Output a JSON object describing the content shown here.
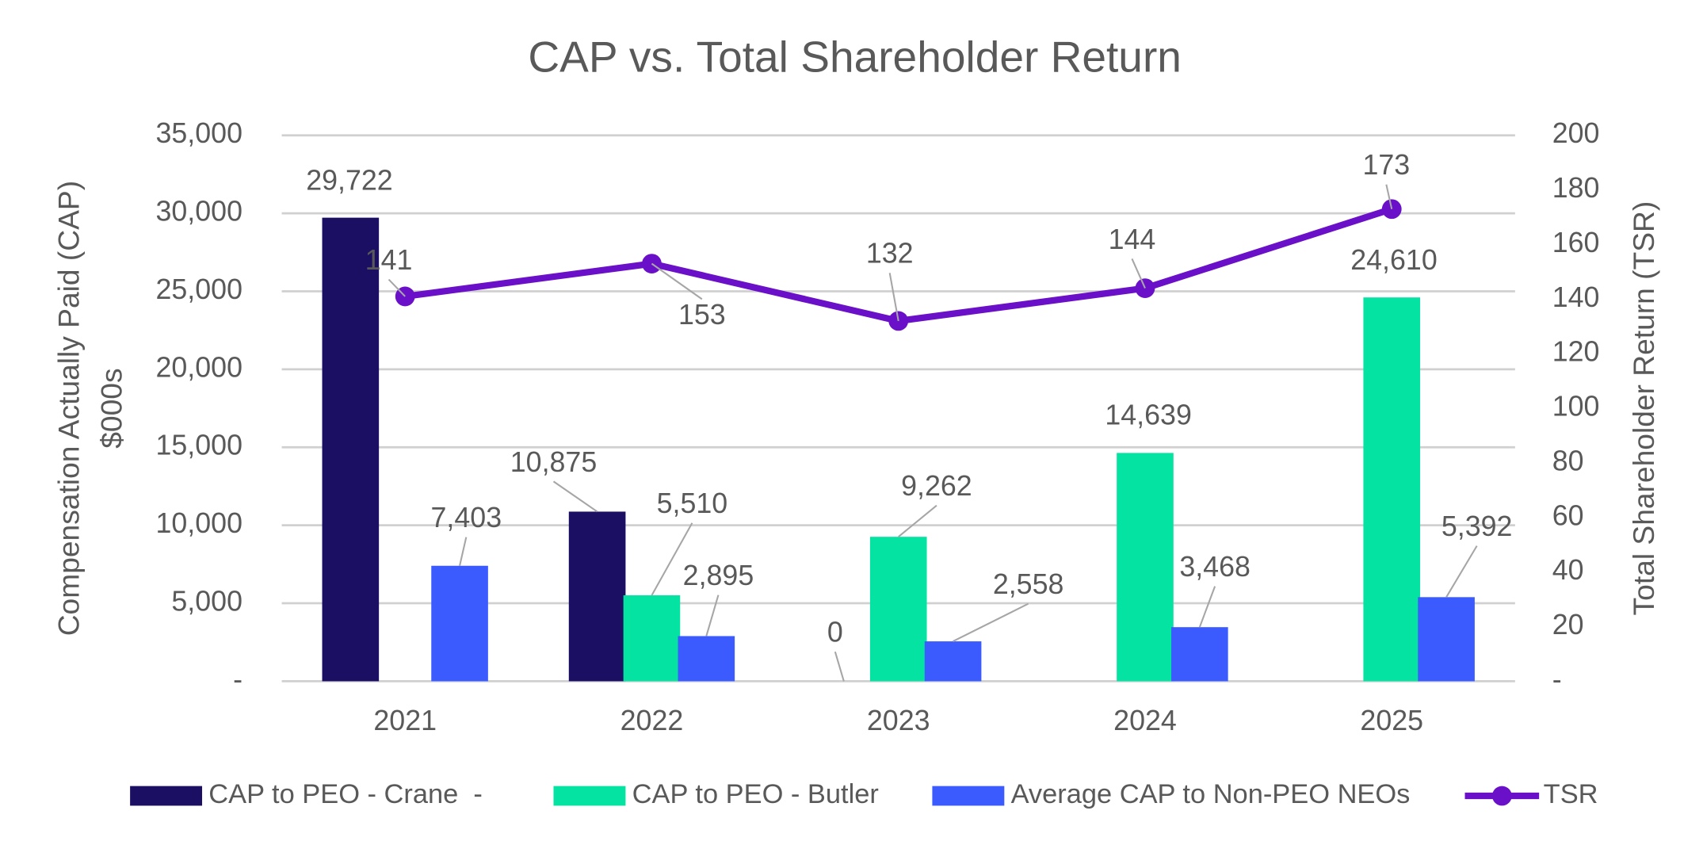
{
  "chart_data": {
    "type": "bar",
    "title": "CAP vs. Total Shareholder Return",
    "y_label": [
      "Compensation Actually Paid (CAP)",
      "$000s"
    ],
    "y2_label": "Total Shareholder Return (TSR)",
    "categories": [
      "2021",
      "2022",
      "2023",
      "2024",
      "2025"
    ],
    "series": [
      {
        "name": "CAP to PEO - Crane  -",
        "color": "#1a0f63",
        "values": [
          29722,
          10875,
          0,
          null,
          null
        ],
        "value_labels": [
          "29,722",
          "10,875",
          "0",
          null,
          null
        ]
      },
      {
        "name": "CAP to PEO - Butler",
        "color": "#05e3a3",
        "values": [
          null,
          5510,
          9262,
          14639,
          24610
        ],
        "value_labels": [
          null,
          "5,510",
          "9,262",
          "14,639",
          "24,610"
        ]
      },
      {
        "name": "Average CAP to Non-PEO NEOs",
        "color": "#3b5bff",
        "values": [
          7403,
          2895,
          2558,
          3468,
          5392
        ],
        "value_labels": [
          "7,403",
          "2,895",
          "2,558",
          "3,468",
          "5,392"
        ]
      },
      {
        "name": "TSR",
        "type": "line",
        "axis": "y2",
        "color": "#6a10c8",
        "values": [
          141,
          153,
          132,
          144,
          173
        ]
      }
    ],
    "ylim": [
      0,
      35000
    ],
    "yticks": [
      {
        "value": 0,
        "label": "-"
      },
      {
        "value": 5000,
        "label": "5,000"
      },
      {
        "value": 10000,
        "label": "10,000"
      },
      {
        "value": 15000,
        "label": "15,000"
      },
      {
        "value": 20000,
        "label": "20,000"
      },
      {
        "value": 25000,
        "label": "25,000"
      },
      {
        "value": 30000,
        "label": "30,000"
      },
      {
        "value": 35000,
        "label": "35,000"
      }
    ],
    "y2lim": [
      0,
      200
    ],
    "y2ticks": [
      {
        "value": 0,
        "label": "-"
      },
      20,
      40,
      60,
      80,
      100,
      120,
      140,
      160,
      180,
      200
    ],
    "grid": true,
    "legend": "bottom"
  }
}
